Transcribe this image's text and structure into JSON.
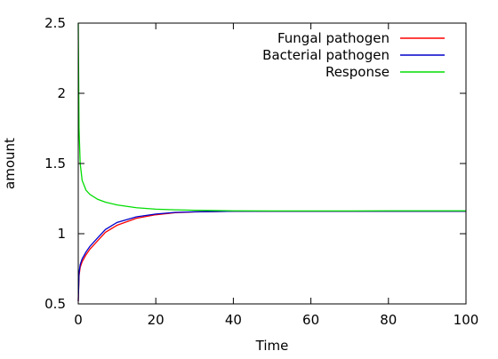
{
  "chart_data": {
    "type": "line",
    "title": "",
    "xlabel": "Time",
    "ylabel": "amount",
    "xlim": [
      0,
      100
    ],
    "ylim": [
      0.5,
      2.5
    ],
    "xticks": [
      0,
      20,
      40,
      60,
      80,
      100
    ],
    "yticks": [
      0.5,
      1,
      1.5,
      2,
      2.5
    ],
    "xtick_labels": [
      "0",
      "20",
      "40",
      "60",
      "80",
      "100"
    ],
    "ytick_labels": [
      "0.5",
      "1",
      "1.5",
      "2",
      "2.5"
    ],
    "grid": false,
    "legend_position": "top-right",
    "x": [
      0,
      0.2,
      0.5,
      1,
      2,
      3,
      5,
      7,
      10,
      15,
      20,
      25,
      30,
      35,
      40,
      50,
      60,
      70,
      80,
      90,
      100
    ],
    "series": [
      {
        "name": "Fungal pathogen",
        "color": "#ff0000",
        "values": [
          0.52,
          0.7,
          0.76,
          0.8,
          0.85,
          0.89,
          0.95,
          1.01,
          1.06,
          1.11,
          1.135,
          1.15,
          1.155,
          1.158,
          1.16,
          1.16,
          1.16,
          1.16,
          1.16,
          1.16,
          1.16
        ]
      },
      {
        "name": "Bacterial pathogen",
        "color": "#0000cc",
        "values": [
          0.52,
          0.72,
          0.78,
          0.82,
          0.87,
          0.91,
          0.97,
          1.03,
          1.08,
          1.12,
          1.14,
          1.152,
          1.156,
          1.158,
          1.16,
          1.16,
          1.16,
          1.16,
          1.16,
          1.16,
          1.16
        ]
      },
      {
        "name": "Response",
        "color": "#00dd00",
        "values": [
          2.5,
          1.75,
          1.5,
          1.38,
          1.31,
          1.28,
          1.245,
          1.225,
          1.205,
          1.185,
          1.175,
          1.17,
          1.167,
          1.165,
          1.163,
          1.162,
          1.162,
          1.162,
          1.163,
          1.163,
          1.163
        ]
      }
    ]
  }
}
